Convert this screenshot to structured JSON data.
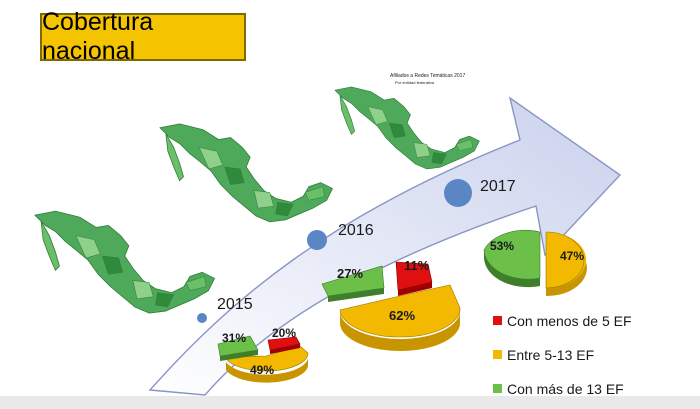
{
  "title": "Cobertura nacional",
  "map_caption_line1": "Afiliados a Redes Temáticas 2017",
  "map_caption_line2": "Por entidad federativa",
  "years": [
    "2015",
    "2016",
    "2017"
  ],
  "legend": [
    {
      "label": "Con menos de 5 EF",
      "color": "#e01010"
    },
    {
      "label": "Entre 5-13 EF",
      "color": "#f3b800"
    },
    {
      "label": "Con más de 13 EF",
      "color": "#6cc04a"
    }
  ],
  "pies": [
    {
      "year": "2015",
      "labels": [
        "20%",
        "49%",
        "31%"
      ]
    },
    {
      "year": "2016",
      "labels": [
        "11%",
        "62%",
        "27%"
      ]
    },
    {
      "year": "2017",
      "labels": [
        "47%",
        "53%"
      ]
    }
  ],
  "colors": {
    "title_bg": "#f5c400",
    "arrow": "#dde3f5",
    "year_dot": "#5b86c4",
    "map_green": "#3f9e4a"
  }
}
